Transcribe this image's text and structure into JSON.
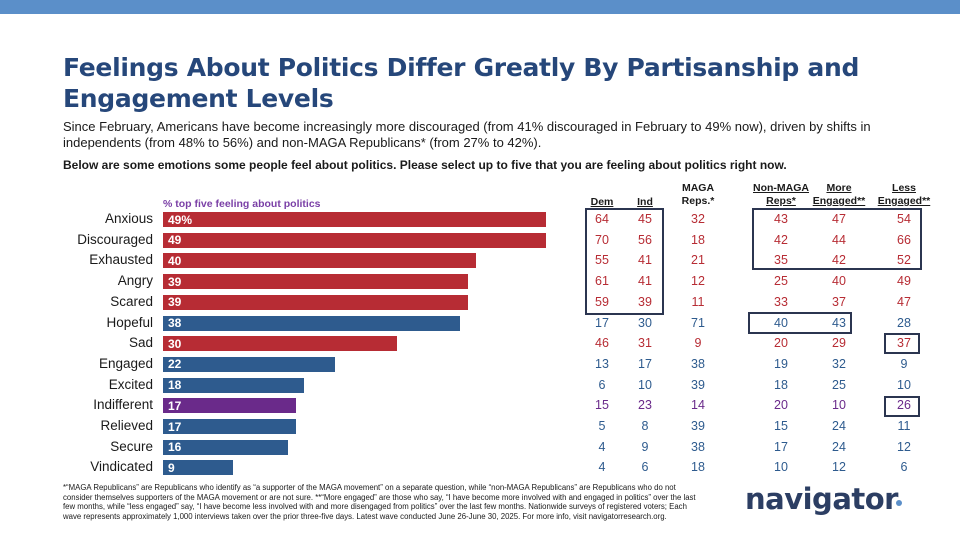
{
  "header": {
    "title": "Feelings About Politics Differ Greatly By Partisanship and Engagement Levels",
    "subtitle": "Since February, Americans have become increasingly more discouraged (from 41% discouraged in February to 49% now), driven by shifts in independents (from 48% to 56%) and non-MAGA Republicans* (from 27% to 42%).",
    "question": "Below are some emotions some people feel about politics. Please select up to five that you are feeling about politics right now."
  },
  "colors": {
    "top_bar": "#5b8fc9",
    "negative": "#b72c34",
    "positive": "#2e5b8e",
    "neutral": "#6a2a8a",
    "box": "#2b3550"
  },
  "chart_data": {
    "type": "bar",
    "orientation": "horizontal",
    "series_label": "% top five feeling about politics",
    "categories": [
      "Anxious",
      "Discouraged",
      "Exhausted",
      "Angry",
      "Scared",
      "Hopeful",
      "Sad",
      "Engaged",
      "Excited",
      "Indifferent",
      "Relieved",
      "Secure",
      "Vindicated"
    ],
    "values": [
      49,
      49,
      40,
      39,
      39,
      38,
      30,
      22,
      18,
      17,
      17,
      16,
      9
    ],
    "value_labels": [
      "49%",
      "49",
      "40",
      "39",
      "39",
      "38",
      "30",
      "22",
      "18",
      "17",
      "17",
      "16",
      "9"
    ],
    "tone": [
      "negative",
      "negative",
      "negative",
      "negative",
      "negative",
      "positive",
      "negative",
      "positive",
      "positive",
      "neutral",
      "positive",
      "positive",
      "positive"
    ],
    "xlim": [
      0,
      55
    ]
  },
  "table": {
    "columns": [
      {
        "key": "dem",
        "label": "Dem",
        "underline": true
      },
      {
        "key": "ind",
        "label": "Ind",
        "underline": true
      },
      {
        "key": "maga",
        "label": "MAGA\nReps.*",
        "underline": false
      },
      {
        "key": "nonmaga",
        "label": "Non-MAGA\nReps*",
        "underline": true
      },
      {
        "key": "more",
        "label": "More\nEngaged**",
        "underline": true
      },
      {
        "key": "less",
        "label": "Less\nEngaged**",
        "underline": true
      }
    ],
    "rows": [
      [
        "64",
        "45",
        "32",
        "43",
        "47",
        "54"
      ],
      [
        "70",
        "56",
        "18",
        "42",
        "44",
        "66"
      ],
      [
        "55",
        "41",
        "21",
        "35",
        "42",
        "52"
      ],
      [
        "61",
        "41",
        "12",
        "25",
        "40",
        "49"
      ],
      [
        "59",
        "39",
        "11",
        "33",
        "37",
        "47"
      ],
      [
        "17",
        "30",
        "71",
        "40",
        "43",
        "28"
      ],
      [
        "46",
        "31",
        "9",
        "20",
        "29",
        "37"
      ],
      [
        "13",
        "17",
        "38",
        "19",
        "32",
        "9"
      ],
      [
        "6",
        "10",
        "39",
        "18",
        "25",
        "10"
      ],
      [
        "15",
        "23",
        "14",
        "20",
        "10",
        "26"
      ],
      [
        "5",
        "8",
        "39",
        "15",
        "24",
        "11"
      ],
      [
        "4",
        "9",
        "38",
        "17",
        "24",
        "12"
      ],
      [
        "4",
        "6",
        "18",
        "10",
        "12",
        "6"
      ]
    ]
  },
  "footnote": "*“MAGA Republicans” are Republicans who identify as “a supporter of the MAGA movement” on a separate question, while “non-MAGA Republicans” are Republicans who do not consider themselves supporters of the MAGA movement or are not sure. **“More engaged” are those who say, “I have become more involved with and engaged in politics” over the last few months, while “less engaged” say, “I have become less involved with and more disengaged from politics” over the last few months. Nationwide surveys of registered voters; Each wave represents approximately 1,000 interviews taken over the prior three-five days. Latest wave conducted June 26-June 30, 2025. For more info, visit navigatorresearch.org.",
  "logo": {
    "text": "navigator"
  }
}
